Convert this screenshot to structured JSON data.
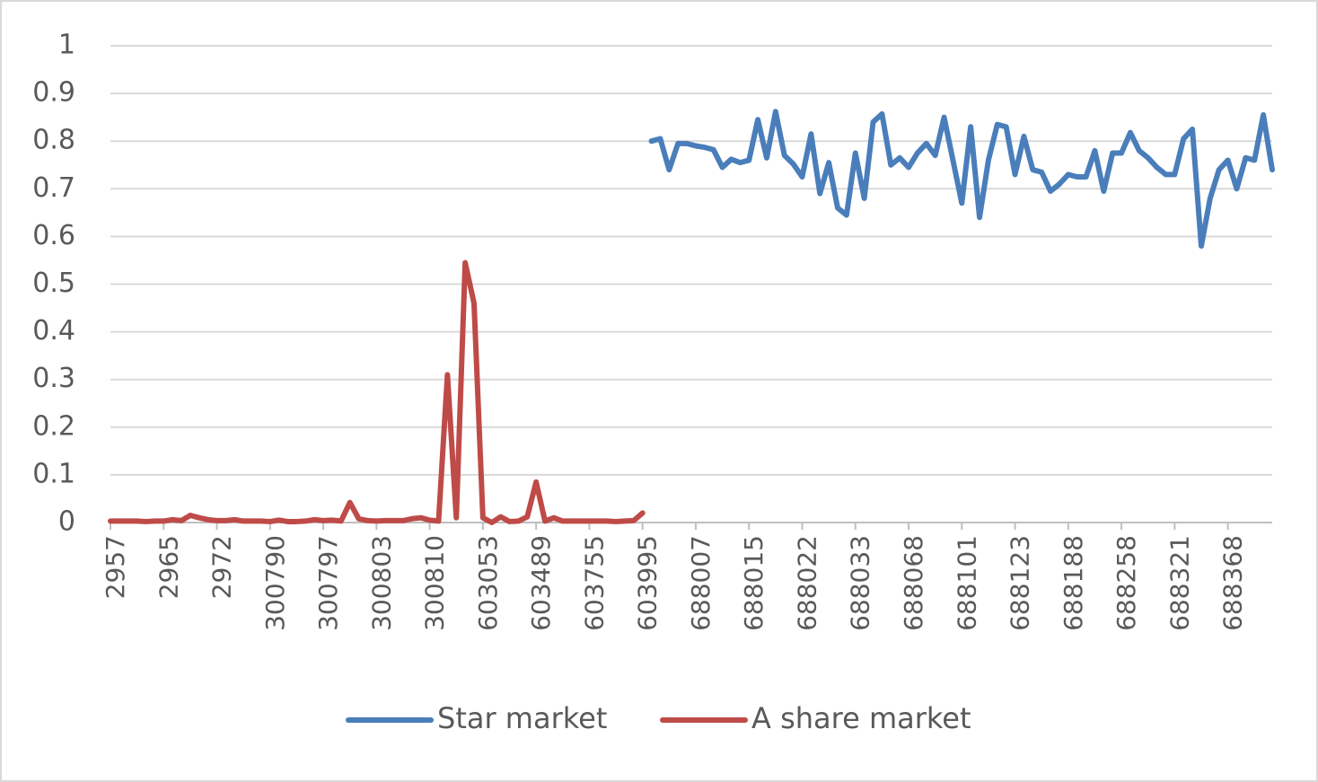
{
  "chart_data": {
    "type": "line",
    "categories": [
      "2957",
      null,
      null,
      null,
      null,
      null,
      "2965",
      null,
      null,
      null,
      null,
      null,
      "2972",
      null,
      null,
      null,
      null,
      null,
      "300790",
      null,
      null,
      null,
      null,
      null,
      "300797",
      null,
      null,
      null,
      null,
      null,
      "300803",
      null,
      null,
      null,
      null,
      null,
      "300810",
      null,
      null,
      null,
      null,
      null,
      "603053",
      null,
      null,
      null,
      null,
      null,
      "603489",
      null,
      null,
      null,
      null,
      null,
      "603755",
      null,
      null,
      null,
      null,
      null,
      "603995",
      null,
      null,
      null,
      null,
      null,
      "688007",
      null,
      null,
      null,
      null,
      null,
      "688015",
      null,
      null,
      null,
      null,
      null,
      "688022",
      null,
      null,
      null,
      null,
      null,
      "688033",
      null,
      null,
      null,
      null,
      null,
      "688068",
      null,
      null,
      null,
      null,
      null,
      "688101",
      null,
      null,
      null,
      null,
      null,
      "688123",
      null,
      null,
      null,
      null,
      null,
      "688188",
      null,
      null,
      null,
      null,
      null,
      "688258",
      null,
      null,
      null,
      null,
      null,
      "688321",
      null,
      null,
      null,
      null,
      null,
      "688368",
      null,
      null,
      null,
      null,
      null
    ],
    "series": [
      {
        "name": "Star market",
        "color": "#4a7ebb",
        "values": [
          null,
          null,
          null,
          null,
          null,
          null,
          null,
          null,
          null,
          null,
          null,
          null,
          null,
          null,
          null,
          null,
          null,
          null,
          null,
          null,
          null,
          null,
          null,
          null,
          null,
          null,
          null,
          null,
          null,
          null,
          null,
          null,
          null,
          null,
          null,
          null,
          null,
          null,
          null,
          null,
          null,
          null,
          null,
          null,
          null,
          null,
          null,
          null,
          null,
          null,
          null,
          null,
          null,
          null,
          null,
          null,
          null,
          null,
          null,
          null,
          null,
          0.8,
          0.805,
          0.74,
          0.795,
          0.795,
          0.79,
          0.787,
          0.782,
          0.745,
          0.762,
          0.755,
          0.76,
          0.845,
          0.765,
          0.862,
          0.77,
          0.752,
          0.725,
          0.815,
          0.69,
          0.755,
          0.66,
          0.645,
          0.775,
          0.68,
          0.84,
          0.857,
          0.75,
          0.765,
          0.745,
          0.775,
          0.795,
          0.77,
          0.85,
          0.76,
          0.67,
          0.83,
          0.64,
          0.76,
          0.835,
          0.83,
          0.73,
          0.81,
          0.74,
          0.735,
          0.695,
          0.71,
          0.73,
          0.725,
          0.725,
          0.78,
          0.695,
          0.775,
          0.775,
          0.818,
          0.78,
          0.765,
          0.745,
          0.73,
          0.73,
          0.805,
          0.825,
          0.58,
          0.68,
          0.74,
          0.76,
          0.7,
          0.765,
          0.76,
          0.855,
          0.74
        ]
      },
      {
        "name": "A share market",
        "color": "#be4b48",
        "values": [
          0.003,
          0.003,
          0.003,
          0.003,
          0.002,
          0.003,
          0.003,
          0.006,
          0.004,
          0.015,
          0.01,
          0.006,
          0.004,
          0.004,
          0.006,
          0.003,
          0.003,
          0.003,
          0.002,
          0.005,
          0.002,
          0.002,
          0.003,
          0.006,
          0.004,
          0.005,
          0.003,
          0.042,
          0.008,
          0.004,
          0.003,
          0.004,
          0.004,
          0.004,
          0.008,
          0.01,
          0.005,
          0.003,
          0.31,
          0.01,
          0.545,
          0.46,
          0.01,
          0.0,
          0.012,
          0.002,
          0.003,
          0.012,
          0.085,
          0.003,
          0.01,
          0.003,
          0.003,
          0.003,
          0.003,
          0.003,
          0.003,
          0.002,
          0.003,
          0.004,
          0.02,
          null,
          null,
          null,
          null,
          null,
          null,
          null,
          null,
          null,
          null,
          null,
          null,
          null,
          null,
          null,
          null,
          null,
          null,
          null,
          null,
          null,
          null,
          null,
          null,
          null,
          null,
          null,
          null,
          null,
          null,
          null,
          null,
          null,
          null,
          null,
          null,
          null,
          null,
          null,
          null,
          null,
          null,
          null,
          null,
          null,
          null,
          null,
          null,
          null,
          null,
          null,
          null,
          null,
          null,
          null,
          null,
          null,
          null,
          null,
          null,
          null,
          null,
          null,
          null,
          null,
          null,
          null,
          null,
          null,
          null,
          null
        ]
      }
    ],
    "ylim": [
      0,
      1
    ],
    "yticks": [
      0,
      0.1,
      0.2,
      0.3,
      0.4,
      0.5,
      0.6,
      0.7,
      0.8,
      0.9,
      1
    ],
    "grid": true,
    "legend": "bottom"
  }
}
